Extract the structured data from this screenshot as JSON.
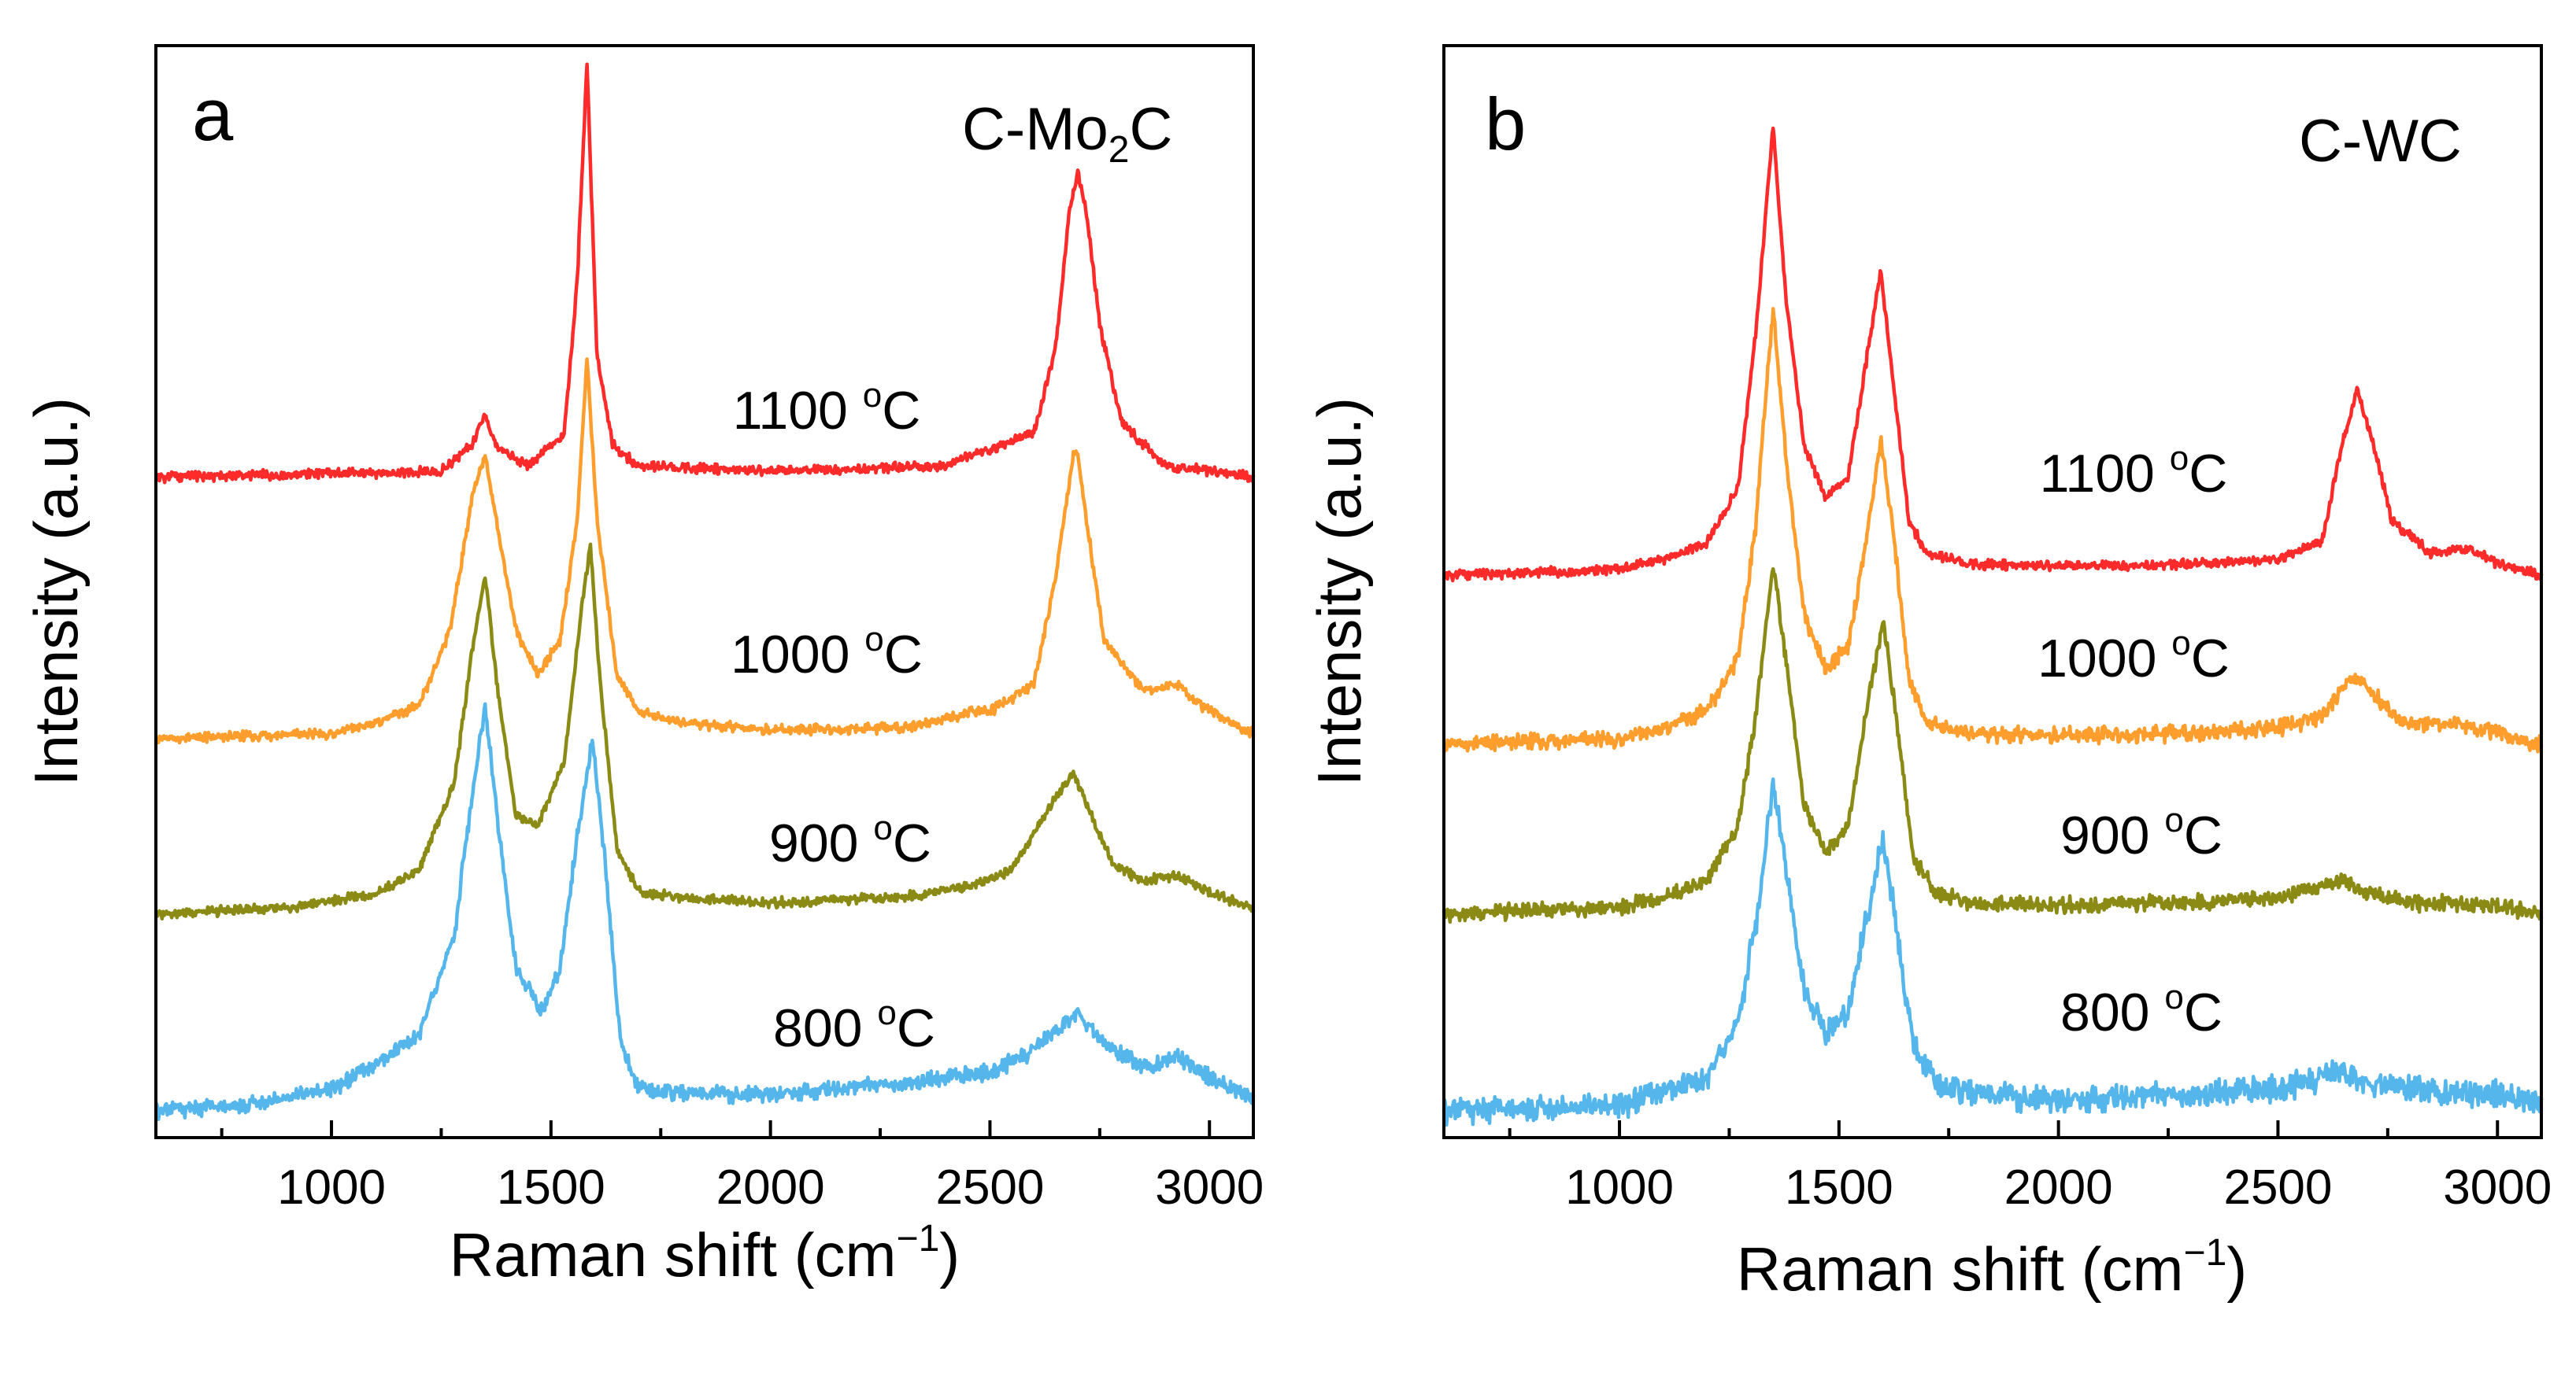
{
  "chart_data": [
    {
      "type": "line",
      "panel": "a",
      "sample": "C-Mo",
      "sample_sub": "2",
      "sample_tail": "C",
      "xlabel": "Raman shift (cm",
      "xlabel_sup": "−1",
      "xlabel_tail": ")",
      "ylabel": "Intensity (a.u.)",
      "xlim": [
        600,
        3100
      ],
      "ylim": [
        0,
        100
      ],
      "xticks": [
        1000,
        1500,
        2000,
        2500,
        3000
      ],
      "series": [
        {
          "name": "1100 °C",
          "label_num": "1100 ",
          "label_deg": "o",
          "label_unit": "C",
          "color": "#ff2a2a",
          "offset": 60.5,
          "x": [
            600,
            1250,
            1320,
            1350,
            1380,
            1450,
            1530,
            1560,
            1582,
            1605,
            1640,
            1700,
            2000,
            2400,
            2450,
            2500,
            2600,
            2650,
            2680,
            2700,
            2720,
            2750,
            2800,
            2900,
            3000,
            3100
          ],
          "y": [
            0,
            0.5,
            3,
            5.5,
            2.5,
            1,
            4,
            18,
            38,
            11,
            3,
            1,
            0.5,
            1,
            2,
            2.5,
            4,
            12,
            24,
            28,
            24,
            14,
            5,
            1,
            0.5,
            0
          ]
        },
        {
          "name": "1000 °C",
          "label_num": "1000 ",
          "label_deg": "o",
          "label_unit": "C",
          "color": "#ff9e2c",
          "offset": 36.5,
          "x": [
            600,
            1000,
            1100,
            1200,
            1270,
            1320,
            1350,
            1380,
            1420,
            1470,
            1520,
            1560,
            1582,
            1605,
            1650,
            1700,
            1800,
            2000,
            2300,
            2420,
            2450,
            2500,
            2600,
            2650,
            2690,
            2700,
            2720,
            2760,
            2850,
            2930,
            2980,
            3100
          ],
          "y": [
            0,
            0.5,
            1.5,
            3,
            10,
            22,
            26,
            19,
            10,
            6,
            9,
            20,
            35,
            20,
            6,
            2.5,
            1.5,
            0.8,
            1,
            2,
            2.5,
            2.5,
            5,
            15,
            26,
            26,
            20,
            9,
            4.5,
            5,
            3,
            0.5
          ]
        },
        {
          "name": "900 °C",
          "label_num": "900 ",
          "label_deg": "o",
          "label_unit": "C",
          "color": "#8a8a14",
          "offset": 20.5,
          "x": [
            600,
            900,
            1100,
            1200,
            1280,
            1320,
            1350,
            1380,
            1420,
            1470,
            1530,
            1570,
            1590,
            1610,
            1650,
            1700,
            1800,
            2000,
            2300,
            2450,
            2550,
            2640,
            2690,
            2720,
            2780,
            2850,
            2930,
            3000,
            3100
          ],
          "y": [
            0,
            0.5,
            1.8,
            4,
            12,
            24,
            31,
            20,
            9,
            8,
            14,
            28,
            34,
            22,
            6,
            2,
            1.5,
            1,
            1.5,
            2.5,
            4,
            10,
            13,
            10,
            4.5,
            3,
            3.5,
            2,
            0.5
          ]
        },
        {
          "name": "800 °C",
          "label_num": "800 ",
          "label_deg": "o",
          "label_unit": "C",
          "color": "#55b6ec",
          "offset": 2.5,
          "x": [
            600,
            800,
            1000,
            1100,
            1200,
            1280,
            1320,
            1350,
            1380,
            1420,
            1480,
            1520,
            1570,
            1595,
            1620,
            1660,
            1700,
            1800,
            2000,
            2300,
            2500,
            2600,
            2700,
            2760,
            2850,
            2930,
            3000,
            3100
          ],
          "y": [
            0,
            0.5,
            2,
            4,
            7,
            16,
            29,
            37,
            26,
            13,
            9,
            13,
            28,
            34,
            24,
            6,
            2,
            1.5,
            1.5,
            2.5,
            3.5,
            5.5,
            9,
            6,
            4,
            5,
            3,
            1
          ]
        }
      ]
    },
    {
      "type": "line",
      "panel": "b",
      "sample": "C-WC",
      "sample_sub": "",
      "sample_tail": "",
      "xlabel": "Raman shift (cm",
      "xlabel_sup": "−1",
      "xlabel_tail": ")",
      "ylabel": "Intensity (a.u.)",
      "xlim": [
        600,
        3100
      ],
      "ylim": [
        0,
        100
      ],
      "xticks": [
        1000,
        1500,
        2000,
        2500,
        3000
      ],
      "series": [
        {
          "name": "1100 °C",
          "label_num": "1100 ",
          "label_deg": "o",
          "label_unit": "C",
          "color": "#ff2a2a",
          "offset": 51.5,
          "x": [
            600,
            1000,
            1100,
            1200,
            1270,
            1310,
            1350,
            1380,
            1420,
            1470,
            1520,
            1560,
            1595,
            1625,
            1660,
            1700,
            1800,
            2000,
            2300,
            2500,
            2600,
            2640,
            2680,
            2710,
            2760,
            2850,
            2930,
            3000,
            3100
          ],
          "y": [
            0,
            0.5,
            1.5,
            3,
            8,
            22,
            41,
            25,
            12,
            7,
            9,
            19,
            28,
            17,
            5,
            2,
            1,
            0.8,
            1,
            1.5,
            3,
            11,
            17,
            13,
            5,
            2,
            2.5,
            1,
            0
          ]
        },
        {
          "name": "1000 °C",
          "label_num": "1000 ",
          "label_deg": "o",
          "label_unit": "C",
          "color": "#ff9e2c",
          "offset": 36,
          "x": [
            600,
            1000,
            1100,
            1200,
            1270,
            1310,
            1350,
            1380,
            1420,
            1470,
            1520,
            1560,
            1595,
            1625,
            1660,
            1700,
            1800,
            2000,
            2300,
            2500,
            2600,
            2650,
            2680,
            2720,
            2780,
            2900,
            3000,
            3100
          ],
          "y": [
            0,
            0.5,
            1.5,
            3,
            8,
            20,
            40,
            26,
            12,
            7,
            9,
            18,
            28,
            19,
            6,
            2,
            1,
            0.8,
            1,
            1.5,
            2.5,
            5.5,
            6,
            4.5,
            2,
            2,
            1,
            0
          ]
        },
        {
          "name": "900 °C",
          "label_num": "900 ",
          "label_deg": "o",
          "label_unit": "C",
          "color": "#8a8a14",
          "offset": 20.5,
          "x": [
            600,
            1000,
            1100,
            1200,
            1270,
            1310,
            1350,
            1380,
            1420,
            1470,
            1520,
            1560,
            1600,
            1630,
            1670,
            1720,
            1800,
            2000,
            2300,
            2500,
            2600,
            2650,
            2700,
            2800,
            3000,
            3100
          ],
          "y": [
            0,
            0.5,
            1.5,
            3,
            8,
            18,
            32,
            23,
            10,
            5.5,
            8,
            18,
            27,
            18,
            5,
            2,
            1,
            0.8,
            1,
            1.5,
            2.5,
            3,
            2,
            1,
            0.8,
            0
          ]
        },
        {
          "name": "800 °C",
          "label_num": "800 ",
          "label_deg": "o",
          "label_unit": "C",
          "color": "#55b6ec",
          "offset": 2.5,
          "x": [
            600,
            1000,
            1100,
            1200,
            1270,
            1310,
            1350,
            1380,
            1420,
            1470,
            1520,
            1560,
            1600,
            1630,
            1670,
            1720,
            1800,
            2000,
            2300,
            2500,
            2600,
            2650,
            2700,
            2800,
            3000,
            3100
          ],
          "y": [
            0,
            0.5,
            1.5,
            3,
            8,
            17,
            30,
            22,
            11,
            7,
            9,
            17,
            25,
            17,
            6,
            2.5,
            1.5,
            1,
            1.5,
            2,
            3,
            3.5,
            2.5,
            2,
            1.5,
            0.5
          ]
        }
      ]
    }
  ]
}
